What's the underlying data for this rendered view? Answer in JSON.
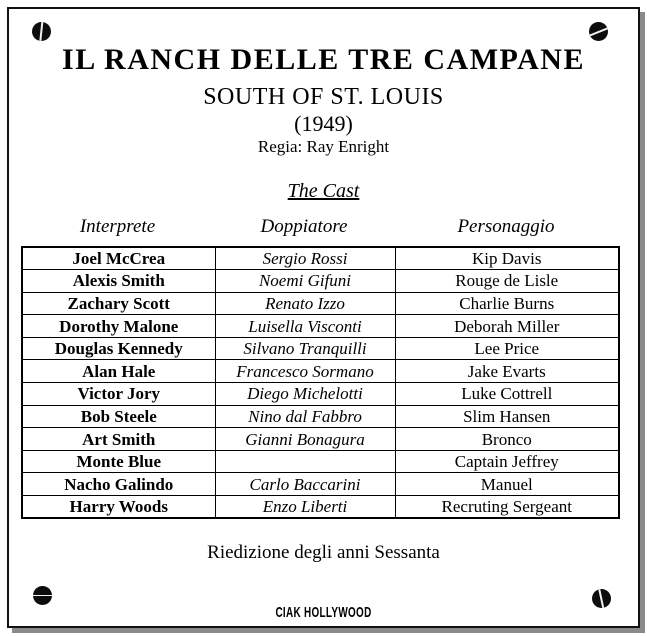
{
  "header": {
    "title": "IL RANCH DELLE TRE CAMPANE",
    "original_title": "SOUTH OF ST. LOUIS",
    "year": "(1949)",
    "director": "Regia: Ray Enright"
  },
  "cast_section": {
    "heading": "The Cast",
    "columns": [
      "Interprete",
      "Doppiatore",
      "Personaggio"
    ],
    "rows": [
      {
        "interprete": "Joel McCrea",
        "doppiatore": "Sergio Rossi",
        "personaggio": "Kip Davis"
      },
      {
        "interprete": "Alexis Smith",
        "doppiatore": "Noemi Gifuni",
        "personaggio": "Rouge de Lisle"
      },
      {
        "interprete": "Zachary Scott",
        "doppiatore": "Renato Izzo",
        "personaggio": "Charlie Burns"
      },
      {
        "interprete": "Dorothy Malone",
        "doppiatore": "Luisella Visconti",
        "personaggio": "Deborah Miller"
      },
      {
        "interprete": "Douglas Kennedy",
        "doppiatore": "Silvano Tranquilli",
        "personaggio": "Lee Price"
      },
      {
        "interprete": "Alan Hale",
        "doppiatore": "Francesco Sormano",
        "personaggio": "Jake Evarts"
      },
      {
        "interprete": "Victor Jory",
        "doppiatore": "Diego Michelotti",
        "personaggio": "Luke Cottrell"
      },
      {
        "interprete": "Bob Steele",
        "doppiatore": "Nino dal Fabbro",
        "personaggio": "Slim Hansen"
      },
      {
        "interprete": "Art Smith",
        "doppiatore": "Gianni Bonagura",
        "personaggio": "Bronco"
      },
      {
        "interprete": "Monte Blue",
        "doppiatore": "",
        "personaggio": "Captain Jeffrey"
      },
      {
        "interprete": "Nacho Galindo",
        "doppiatore": "Carlo Baccarini",
        "personaggio": "Manuel"
      },
      {
        "interprete": "Harry Woods",
        "doppiatore": "Enzo Liberti",
        "personaggio": "Recruting Sergeant"
      }
    ]
  },
  "footer": {
    "note": "Riedizione degli anni Sessanta",
    "logo": "CIAK HOLLYWOOD"
  },
  "colors": {
    "text": "#000000",
    "background": "#ffffff",
    "frame_border": "#111111",
    "shadow": "#8a8a8a",
    "screw": "#0d0d0d"
  }
}
